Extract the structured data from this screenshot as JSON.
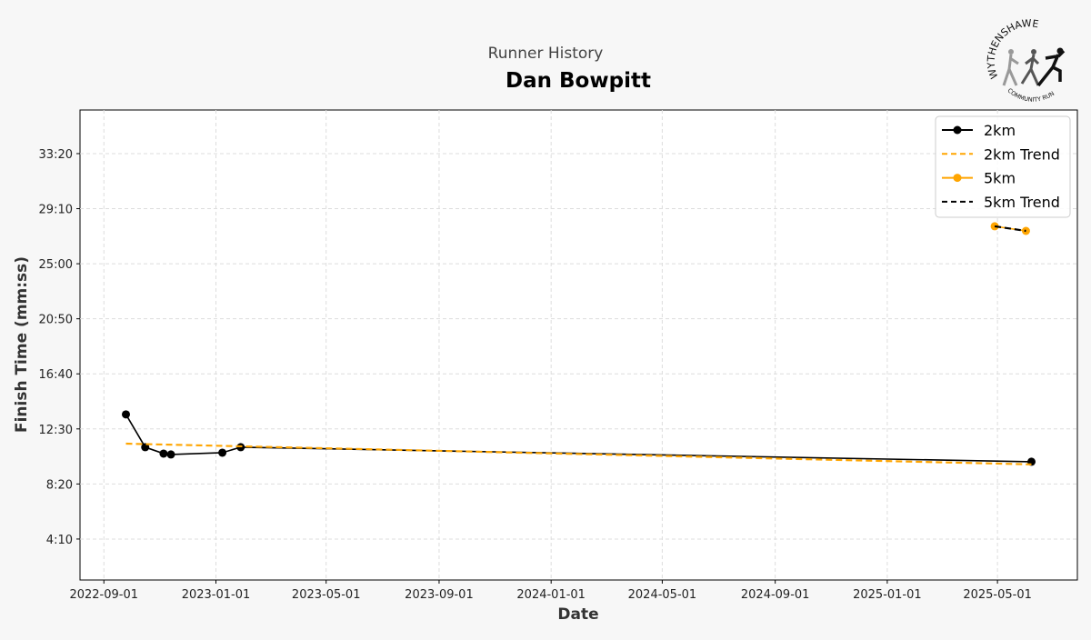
{
  "chart_data": {
    "type": "line",
    "suptitle": "Runner History",
    "title": "Dan Bowpitt",
    "xlabel": "Date",
    "ylabel": "Finish Time (mm:ss)",
    "xlim": [
      "2022-08-06",
      "2025-07-27"
    ],
    "ylim_seconds": [
      64,
      2198
    ],
    "x_ticks": [
      "2022-09-01",
      "2023-01-01",
      "2023-05-01",
      "2023-09-01",
      "2024-01-01",
      "2024-05-01",
      "2024-09-01",
      "2025-01-01",
      "2025-05-01"
    ],
    "y_ticks": [
      {
        "s": 250,
        "label": "4:10"
      },
      {
        "s": 500,
        "label": "8:20"
      },
      {
        "s": 750,
        "label": "12:30"
      },
      {
        "s": 1000,
        "label": "16:40"
      },
      {
        "s": 1250,
        "label": "20:50"
      },
      {
        "s": 1500,
        "label": "25:00"
      },
      {
        "s": 1750,
        "label": "29:10"
      },
      {
        "s": 2000,
        "label": "33:20"
      }
    ],
    "grid": true,
    "legend_position": "top-right",
    "series": [
      {
        "name": "2km",
        "color": "#000000",
        "style": "solid",
        "marker": true,
        "points": [
          [
            "2022-09-25",
            816
          ],
          [
            "2022-10-16",
            667
          ],
          [
            "2022-11-05",
            638
          ],
          [
            "2022-11-13",
            634
          ],
          [
            "2023-01-08",
            642
          ],
          [
            "2023-01-28",
            667
          ],
          [
            "2025-06-07",
            601
          ]
        ]
      },
      {
        "name": "2km Trend",
        "color": "#ffa500",
        "style": "dashed",
        "marker": false,
        "points": [
          [
            "2022-09-25",
            683
          ],
          [
            "2025-06-07",
            589
          ]
        ]
      },
      {
        "name": "5km",
        "color": "#ffa500",
        "style": "solid",
        "marker": true,
        "points": [
          [
            "2025-04-28",
            1670
          ],
          [
            "2025-06-01",
            1649
          ]
        ]
      },
      {
        "name": "5km Trend",
        "color": "#000000",
        "style": "dashed",
        "marker": false,
        "points": [
          [
            "2025-04-28",
            1670
          ],
          [
            "2025-06-01",
            1649
          ]
        ]
      }
    ]
  },
  "logo": {
    "top_text": "WYTHENSHAWE",
    "bottom_text": "COMMUNITY RUN"
  }
}
